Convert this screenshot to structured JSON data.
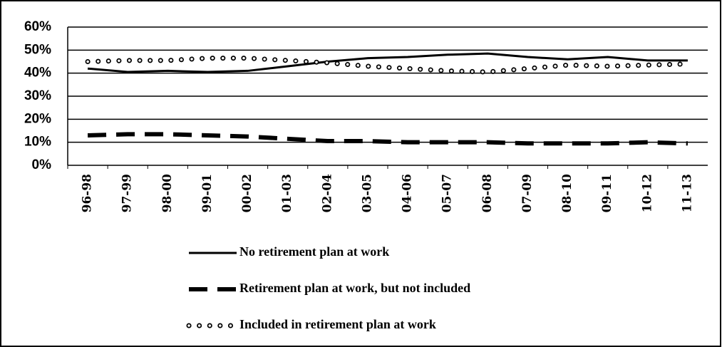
{
  "chart_data": {
    "type": "line",
    "categories": [
      "96-98",
      "97-99",
      "98-00",
      "99-01",
      "00-02",
      "01-03",
      "02-04",
      "03-05",
      "04-06",
      "05-07",
      "06-08",
      "07-09",
      "08-10",
      "09-11",
      "10-12",
      "11-13"
    ],
    "series": [
      {
        "name": "No retirement plan at work",
        "color": "#000000",
        "style": "solid",
        "values": [
          42,
          40.5,
          41,
          40.5,
          41,
          43,
          45,
          46.5,
          47,
          48,
          48.5,
          47,
          46,
          47,
          45.5,
          45.5
        ]
      },
      {
        "name": "Retirement plan at work, but not included",
        "color": "#000000",
        "style": "dashed",
        "values": [
          13,
          13.5,
          13.5,
          13,
          12.5,
          11.5,
          10.5,
          10.5,
          10,
          10,
          10,
          9.5,
          9.5,
          9.5,
          10,
          9.5
        ]
      },
      {
        "name": "Included in retirement plan at work",
        "color": "#000000",
        "style": "dotted",
        "values": [
          45,
          45.5,
          45.5,
          46.5,
          46.5,
          45.5,
          44.5,
          43,
          42,
          41,
          40.5,
          42,
          43.5,
          43,
          43.5,
          44
        ]
      }
    ],
    "ylim": [
      0,
      60
    ],
    "yticks": [
      {
        "value": 0,
        "label": "0%"
      },
      {
        "value": 10,
        "label": "10%"
      },
      {
        "value": 20,
        "label": "20%"
      },
      {
        "value": 30,
        "label": "30%"
      },
      {
        "value": 40,
        "label": "40%"
      },
      {
        "value": 50,
        "label": "50%"
      },
      {
        "value": 60,
        "label": "60%"
      }
    ],
    "grid": true,
    "legend": "bottom"
  }
}
